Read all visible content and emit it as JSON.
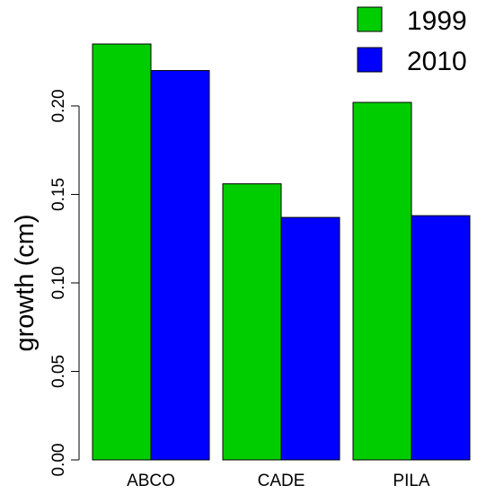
{
  "chart_data": {
    "type": "bar",
    "categories": [
      "ABCO",
      "CADE",
      "PILA"
    ],
    "series": [
      {
        "name": "1999",
        "color": "#00cd00",
        "values": [
          0.235,
          0.156,
          0.202
        ]
      },
      {
        "name": "2010",
        "color": "#0000ff",
        "values": [
          0.22,
          0.137,
          0.138
        ]
      }
    ],
    "ylabel": "growth (cm)",
    "xlabel": "",
    "title": "",
    "ylim": [
      0,
      0.235
    ],
    "yticks": [
      0.0,
      0.05,
      0.1,
      0.15,
      0.2
    ],
    "ytick_labels": [
      "0.00",
      "0.05",
      "0.10",
      "0.15",
      "0.20"
    ],
    "legend_position": "top-right",
    "grid": false
  }
}
